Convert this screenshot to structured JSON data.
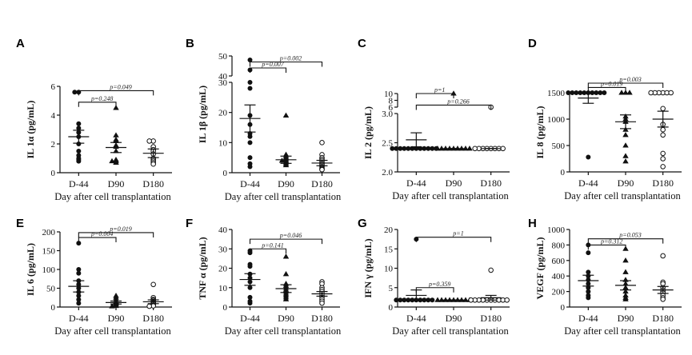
{
  "chart_data": [
    {
      "type": "scatter",
      "letter": "A",
      "ylabel": "IL 1α (pg/mL)",
      "xlabel": "Day after cell transplantation",
      "categories": [
        "D-44",
        "D90",
        "D180"
      ],
      "ylim": [
        0,
        6
      ],
      "yticks": [
        0,
        2,
        4,
        6
      ],
      "yticklabels": [
        "0",
        "2",
        "4",
        "6"
      ],
      "series": [
        {
          "values": [
            5.6,
            5.6,
            3.4,
            3.1,
            2.8,
            2.5,
            2.0,
            1.5,
            1.2,
            1.0,
            0.9,
            0.8
          ]
        },
        {
          "values": [
            4.5,
            2.6,
            2.3,
            2.2,
            1.9,
            1.8,
            1.5,
            0.9,
            0.8,
            0.8,
            0.7
          ]
        },
        {
          "values": [
            2.2,
            2.2,
            1.8,
            1.6,
            1.5,
            1.3,
            1.0,
            0.9,
            0.8,
            0.7,
            0.6
          ]
        }
      ],
      "summary": [
        {
          "mean": 2.5,
          "sem": 0.45
        },
        {
          "mean": 1.75,
          "sem": 0.35
        },
        {
          "mean": 1.35,
          "sem": 0.3
        }
      ],
      "comparisons": [
        {
          "from": 0,
          "to": 1,
          "label": "p=0.248",
          "y": 4.9
        },
        {
          "from": 0,
          "to": 2,
          "label": "p=0.049",
          "y": 5.7
        }
      ]
    },
    {
      "type": "scatter",
      "letter": "B",
      "ylabel": "IL 1β (pg/mL)",
      "xlabel": "Day after cell transplantation",
      "categories": [
        "D-44",
        "D90",
        "D180"
      ],
      "ylim": [
        0,
        30
      ],
      "broken": true,
      "upper_ylim": [
        40,
        50
      ],
      "yticks": [
        0,
        10,
        20,
        30
      ],
      "yticklabels": [
        "0",
        "10",
        "20",
        "30"
      ],
      "upper_yticklabels": [
        "40",
        "50"
      ],
      "series": [
        {
          "values": [
            48,
            43,
            30,
            28,
            19,
            16,
            13,
            12,
            10,
            5,
            3,
            2
          ]
        },
        {
          "values": [
            19,
            6,
            5.5,
            5,
            4.5,
            4,
            4,
            3.5,
            3,
            2.5
          ]
        },
        {
          "values": [
            10,
            6,
            5,
            4.5,
            4,
            3.5,
            3,
            2.5,
            2,
            1.5,
            1.2,
            1
          ]
        }
      ],
      "summary": [
        {
          "mean": 18,
          "sem": 4.5
        },
        {
          "mean": 4.3,
          "sem": 1.2
        },
        {
          "mean": 3.2,
          "sem": 0.9
        }
      ],
      "comparisons": [
        {
          "from": 0,
          "to": 1,
          "label": "p=0.007",
          "y": 44
        },
        {
          "from": 0,
          "to": 2,
          "label": "p=0.002",
          "y": 47
        }
      ]
    },
    {
      "type": "scatter",
      "letter": "C",
      "ylabel": "IL 2 (pg/mL)",
      "xlabel": "Day after cell transplantation",
      "categories": [
        "D-44",
        "D90",
        "D180"
      ],
      "ylim": [
        2.0,
        3.0
      ],
      "broken": true,
      "upper_ylim": [
        6,
        10
      ],
      "yticks": [
        2.0,
        2.5,
        3.0
      ],
      "yticklabels": [
        "2.0",
        "2.5",
        "3.0"
      ],
      "upper_yticklabels": [
        "6",
        "8",
        "10"
      ],
      "series": [
        {
          "values": [
            2.4,
            2.4,
            2.4,
            2.4,
            2.4,
            2.4,
            2.4,
            2.4,
            2.4,
            2.4,
            2.4,
            2.4
          ]
        },
        {
          "values": [
            10,
            2.4,
            2.4,
            2.4,
            2.4,
            2.4,
            2.4,
            2.4,
            2.4,
            2.4
          ]
        },
        {
          "values": [
            6,
            2.4,
            2.4,
            2.4,
            2.4,
            2.4,
            2.4,
            2.4,
            2.4
          ]
        }
      ],
      "summary": [
        {
          "mean": 2.55,
          "sem": 0.12
        },
        {
          "mean": 2.4,
          "sem": 0
        },
        {
          "mean": 2.4,
          "sem": 0
        }
      ],
      "comparisons": [
        {
          "from": 0,
          "to": 1,
          "label": "p=1",
          "y": 10
        },
        {
          "from": 0,
          "to": 2,
          "label": "p=0.266",
          "y": 6.6
        }
      ]
    },
    {
      "type": "scatter",
      "letter": "D",
      "ylabel": "IL 8 (pg/mL)",
      "xlabel": "Day after cell transplantation",
      "categories": [
        "D-44",
        "D90",
        "D180"
      ],
      "ylim": [
        0,
        1500
      ],
      "yticks": [
        0,
        500,
        1000,
        1500
      ],
      "yticklabels": [
        "0",
        "500",
        "1000",
        "1500"
      ],
      "series": [
        {
          "values": [
            1500,
            1500,
            1500,
            1500,
            1500,
            1500,
            1500,
            1500,
            1500,
            1500,
            280
          ]
        },
        {
          "values": [
            1500,
            1500,
            1500,
            1050,
            1000,
            950,
            800,
            700,
            500,
            300,
            200
          ]
        },
        {
          "values": [
            1500,
            1500,
            1500,
            1500,
            1500,
            1500,
            1200,
            900,
            800,
            700,
            350,
            250,
            100
          ]
        }
      ],
      "summary": [
        {
          "mean": 1400,
          "sem": 100
        },
        {
          "mean": 950,
          "sem": 130
        },
        {
          "mean": 1000,
          "sem": 150
        }
      ],
      "comparisons": [
        {
          "from": 0,
          "to": 1,
          "label": "p=0.019",
          "y": 1600
        },
        {
          "from": 0,
          "to": 2,
          "label": "p=0.003",
          "y": 1750
        }
      ]
    },
    {
      "type": "scatter",
      "letter": "E",
      "ylabel": "IL 6 (pg/mL)",
      "xlabel": "Day after cell transplantation",
      "categories": [
        "D-44",
        "D90",
        "D180"
      ],
      "ylim": [
        0,
        200
      ],
      "yticks": [
        0,
        50,
        100,
        150,
        200
      ],
      "yticklabels": [
        "0",
        "50",
        "100",
        "150",
        "200"
      ],
      "series": [
        {
          "values": [
            170,
            100,
            90,
            70,
            60,
            50,
            40,
            30,
            20,
            10
          ]
        },
        {
          "values": [
            30,
            25,
            20,
            15,
            12,
            10,
            8,
            5,
            3,
            2
          ]
        },
        {
          "values": [
            60,
            25,
            20,
            18,
            15,
            12,
            10,
            8,
            5,
            3,
            2
          ]
        }
      ],
      "summary": [
        {
          "mean": 55,
          "sem": 15
        },
        {
          "mean": 12,
          "sem": 4
        },
        {
          "mean": 14,
          "sem": 5
        }
      ],
      "comparisons": [
        {
          "from": 0,
          "to": 1,
          "label": "p=0.004",
          "y": 185
        },
        {
          "from": 0,
          "to": 2,
          "label": "p=0.019",
          "y": 198
        }
      ]
    },
    {
      "type": "scatter",
      "letter": "F",
      "ylabel": "TNF α (pg/mL)",
      "xlabel": "Day after cell transplantation",
      "categories": [
        "D-44",
        "D90",
        "D180"
      ],
      "ylim": [
        0,
        40
      ],
      "yticks": [
        0,
        10,
        20,
        30,
        40
      ],
      "yticklabels": [
        "0",
        "10",
        "20",
        "30",
        "40"
      ],
      "series": [
        {
          "values": [
            29,
            28,
            22,
            21,
            17,
            15,
            13,
            10,
            5,
            3,
            2
          ]
        },
        {
          "values": [
            26,
            17,
            12,
            11,
            10,
            9,
            8,
            7,
            6,
            5,
            4
          ]
        },
        {
          "values": [
            13,
            12,
            10,
            9,
            8,
            7,
            6,
            5,
            4,
            3,
            2
          ]
        }
      ],
      "summary": [
        {
          "mean": 14.2,
          "sem": 3
        },
        {
          "mean": 9.5,
          "sem": 2
        },
        {
          "mean": 6.8,
          "sem": 1.2
        }
      ],
      "comparisons": [
        {
          "from": 0,
          "to": 1,
          "label": "p=0.141",
          "y": 30
        },
        {
          "from": 0,
          "to": 2,
          "label": "p=0.046",
          "y": 35
        }
      ]
    },
    {
      "type": "scatter",
      "letter": "G",
      "ylabel": "IFN γ (pg/mL)",
      "xlabel": "Day after cell transplantation",
      "categories": [
        "D-44",
        "D90",
        "D180"
      ],
      "ylim": [
        0,
        20
      ],
      "yticks": [
        0,
        5,
        10,
        15,
        20
      ],
      "yticklabels": [
        "0",
        "5",
        "10",
        "15",
        "20"
      ],
      "series": [
        {
          "values": [
            17.5,
            1.8,
            1.8,
            1.8,
            1.8,
            1.8,
            1.8,
            1.8,
            1.8,
            1.8,
            1.8
          ]
        },
        {
          "values": [
            1.8,
            1.8,
            1.8,
            1.8,
            1.8,
            1.8,
            1.8,
            1.8,
            1.8
          ]
        },
        {
          "values": [
            9.5,
            1.8,
            1.8,
            1.8,
            1.8,
            1.8,
            1.8,
            1.8,
            1.8,
            1.8,
            1.8
          ]
        }
      ],
      "summary": [
        {
          "mean": 3.0,
          "sem": 1.4
        },
        {
          "mean": 1.8,
          "sem": 0
        },
        {
          "mean": 2.4,
          "sem": 0.6
        }
      ],
      "comparisons": [
        {
          "from": 0,
          "to": 1,
          "label": "p=0.359",
          "y": 5
        },
        {
          "from": 0,
          "to": 2,
          "label": "p=1",
          "y": 18
        }
      ]
    },
    {
      "type": "scatter",
      "letter": "H",
      "ylabel": "VEGF (pg/mL)",
      "xlabel": "Day after cell transplantation",
      "categories": [
        "D-44",
        "D90",
        "D180"
      ],
      "ylim": [
        0,
        1000
      ],
      "yticks": [
        0,
        200,
        400,
        600,
        800,
        1000
      ],
      "yticklabels": [
        "0",
        "200",
        "400",
        "600",
        "800",
        "1000"
      ],
      "series": [
        {
          "values": [
            800,
            700,
            450,
            400,
            350,
            300,
            250,
            200,
            150,
            120
          ]
        },
        {
          "values": [
            750,
            600,
            450,
            350,
            300,
            250,
            200,
            150,
            120,
            100
          ]
        },
        {
          "values": [
            660,
            320,
            300,
            250,
            220,
            200,
            180,
            150,
            120,
            100
          ]
        }
      ],
      "summary": [
        {
          "mean": 340,
          "sem": 70
        },
        {
          "mean": 280,
          "sem": 60
        },
        {
          "mean": 220,
          "sem": 45
        }
      ],
      "comparisons": [
        {
          "from": 0,
          "to": 1,
          "label": "p=0.312",
          "y": 800
        },
        {
          "from": 0,
          "to": 2,
          "label": "p=0.053",
          "y": 880
        }
      ]
    }
  ]
}
